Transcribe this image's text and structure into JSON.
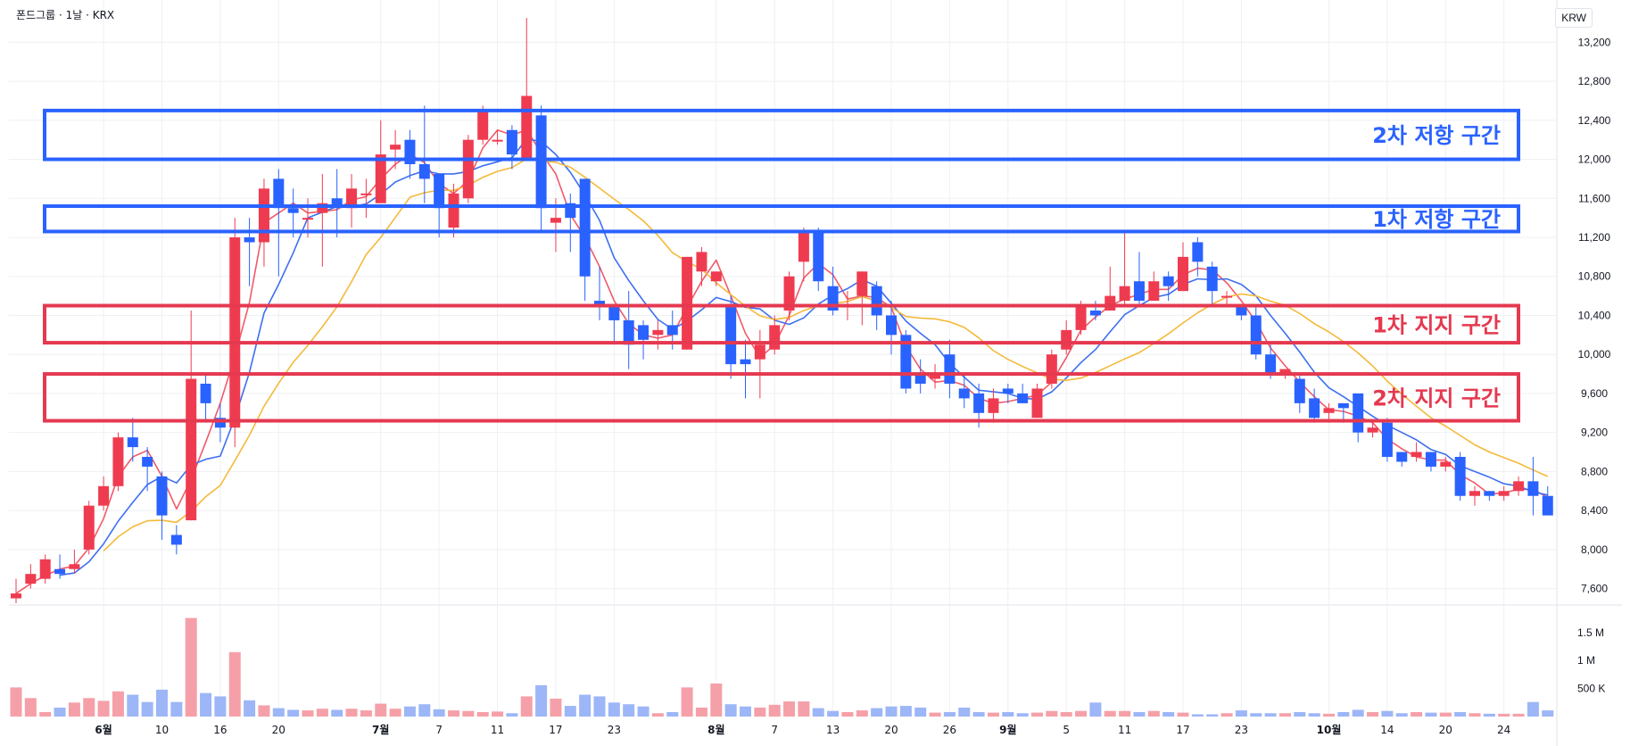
{
  "header": {
    "title": "폰드그룹 · 1날 · KRX",
    "currency": "KRW"
  },
  "colors": {
    "up": "#ef3b50",
    "down": "#2962ff",
    "ma5": "#f05a68",
    "ma10": "#3d6ff0",
    "ma20": "#f5b93a",
    "volUp": "#f5a0a8",
    "volDown": "#9db6f7",
    "grid": "#eef0f4"
  },
  "chart_data": {
    "type": "candlestick",
    "ylim": [
      7450,
      13450
    ],
    "y_ticks": [
      "13,200",
      "12,800",
      "12,400",
      "12,000",
      "11,600",
      "11,200",
      "10,800",
      "10,400",
      "10,000",
      "9,600",
      "9,200",
      "8,800",
      "8,400",
      "8,000",
      "7,600"
    ],
    "y_tick_values": [
      13200,
      12800,
      12400,
      12000,
      11600,
      11200,
      10800,
      10400,
      10000,
      9600,
      9200,
      8800,
      8400,
      8000,
      7600
    ],
    "vol_ticks": [
      "1.5 M",
      "1 M",
      "500 K"
    ],
    "vol_tick_values": [
      1500000,
      1000000,
      500000
    ],
    "vol_max": 1800000,
    "x_labels": [
      {
        "i": 6,
        "text": "6월",
        "bold": true
      },
      {
        "i": 10,
        "text": "10"
      },
      {
        "i": 14,
        "text": "16"
      },
      {
        "i": 18,
        "text": "20"
      },
      {
        "i": 25,
        "text": "7월",
        "bold": true
      },
      {
        "i": 29,
        "text": "7"
      },
      {
        "i": 33,
        "text": "11"
      },
      {
        "i": 37,
        "text": "17"
      },
      {
        "i": 41,
        "text": "23"
      },
      {
        "i": 48,
        "text": "8월",
        "bold": true
      },
      {
        "i": 52,
        "text": "7"
      },
      {
        "i": 56,
        "text": "13"
      },
      {
        "i": 60,
        "text": "20"
      },
      {
        "i": 64,
        "text": "26"
      },
      {
        "i": 68,
        "text": "9월",
        "bold": true
      },
      {
        "i": 72,
        "text": "5"
      },
      {
        "i": 76,
        "text": "11"
      },
      {
        "i": 80,
        "text": "17"
      },
      {
        "i": 84,
        "text": "23"
      },
      {
        "i": 90,
        "text": "10월",
        "bold": true
      },
      {
        "i": 94,
        "text": "14"
      },
      {
        "i": 98,
        "text": "20"
      },
      {
        "i": 102,
        "text": "24"
      }
    ],
    "zones": [
      {
        "label": "2차 저항 구간",
        "top": 12500,
        "bottom": 12000,
        "color": "#2962ff"
      },
      {
        "label": "1차 저항 구간",
        "top": 11520,
        "bottom": 11260,
        "color": "#2962ff"
      },
      {
        "label": "1차 지지 구간",
        "top": 10500,
        "bottom": 10120,
        "color": "#e53950"
      },
      {
        "label": "2차 지지 구간",
        "top": 9800,
        "bottom": 9320,
        "color": "#e53950"
      }
    ],
    "candles": [
      [
        7500,
        7550,
        7450,
        7700
      ],
      [
        7650,
        7750,
        7600,
        7850
      ],
      [
        7700,
        7900,
        7650,
        7950
      ],
      [
        7800,
        7750,
        7700,
        7950
      ],
      [
        7800,
        7850,
        7750,
        8000
      ],
      [
        8000,
        8450,
        7950,
        8500
      ],
      [
        8450,
        8650,
        8400,
        8750
      ],
      [
        8650,
        9150,
        8600,
        9200
      ],
      [
        9150,
        9050,
        8900,
        9350
      ],
      [
        8950,
        8850,
        8600,
        9050
      ],
      [
        8750,
        8350,
        8100,
        8800
      ],
      [
        8150,
        8050,
        7950,
        8250
      ],
      [
        8300,
        9750,
        8300,
        10450
      ],
      [
        9700,
        9500,
        9300,
        9800
      ],
      [
        9350,
        9250,
        9100,
        9500
      ],
      [
        9250,
        11200,
        9050,
        11400
      ],
      [
        11200,
        11150,
        10700,
        11400
      ],
      [
        11150,
        11700,
        10900,
        11800
      ],
      [
        11800,
        11500,
        10800,
        11900
      ],
      [
        11500,
        11450,
        11200,
        11700
      ],
      [
        11400,
        11400,
        11200,
        11600
      ],
      [
        11450,
        11550,
        10900,
        11850
      ],
      [
        11600,
        11500,
        11200,
        11900
      ],
      [
        11500,
        11700,
        11300,
        11850
      ],
      [
        11650,
        11650,
        11400,
        11800
      ],
      [
        11550,
        12050,
        11550,
        12400
      ],
      [
        12100,
        12150,
        11900,
        12300
      ],
      [
        12200,
        11950,
        11800,
        12300
      ],
      [
        11950,
        11800,
        11550,
        12550
      ],
      [
        11850,
        11500,
        11200,
        11850
      ],
      [
        11300,
        11650,
        11200,
        11750
      ],
      [
        11600,
        12200,
        11550,
        12250
      ],
      [
        12200,
        12500,
        12150,
        12550
      ],
      [
        12200,
        12200,
        12150,
        12300
      ],
      [
        12300,
        12050,
        11900,
        12350
      ],
      [
        12000,
        12650,
        12000,
        13450
      ],
      [
        12450,
        11500,
        11250,
        12550
      ],
      [
        11350,
        11400,
        11050,
        11600
      ],
      [
        11550,
        11400,
        11050,
        11650
      ],
      [
        11800,
        10800,
        10550,
        11800
      ],
      [
        10550,
        10500,
        10350,
        10900
      ],
      [
        10500,
        10350,
        10100,
        10500
      ],
      [
        10350,
        10100,
        9850,
        10650
      ],
      [
        10300,
        10150,
        9950,
        10350
      ],
      [
        10200,
        10250,
        10050,
        10350
      ],
      [
        10300,
        10200,
        10050,
        10450
      ],
      [
        10050,
        11000,
        10050,
        11000
      ],
      [
        10850,
        11050,
        10700,
        11100
      ],
      [
        10750,
        10850,
        10700,
        10850
      ],
      [
        10500,
        9900,
        9750,
        10600
      ],
      [
        9950,
        9900,
        9550,
        10150
      ],
      [
        9950,
        10100,
        9550,
        10250
      ],
      [
        10050,
        10300,
        10000,
        10400
      ],
      [
        10450,
        10800,
        10350,
        10850
      ],
      [
        10950,
        11250,
        10750,
        11300
      ],
      [
        11250,
        10750,
        10650,
        11300
      ],
      [
        10700,
        10450,
        10400,
        10900
      ],
      [
        10500,
        10500,
        10350,
        10650
      ],
      [
        10600,
        10850,
        10300,
        10850
      ],
      [
        10700,
        10400,
        10250,
        10750
      ],
      [
        10400,
        10200,
        10000,
        10550
      ],
      [
        10200,
        9650,
        9600,
        10250
      ],
      [
        9800,
        9700,
        9600,
        9950
      ],
      [
        9750,
        9800,
        9650,
        9900
      ],
      [
        10000,
        9700,
        9550,
        10150
      ],
      [
        9650,
        9550,
        9450,
        9800
      ],
      [
        9600,
        9400,
        9250,
        9700
      ],
      [
        9400,
        9550,
        9300,
        9650
      ],
      [
        9650,
        9600,
        9500,
        9700
      ],
      [
        9600,
        9500,
        9500,
        9700
      ],
      [
        9350,
        9650,
        9350,
        9700
      ],
      [
        9700,
        10000,
        9650,
        10050
      ],
      [
        10050,
        10250,
        10000,
        10350
      ],
      [
        10250,
        10500,
        10200,
        10550
      ],
      [
        10450,
        10400,
        10350,
        10550
      ],
      [
        10450,
        10600,
        10450,
        10900
      ],
      [
        10550,
        10700,
        10500,
        11250
      ],
      [
        10750,
        10550,
        10500,
        11050
      ],
      [
        10550,
        10750,
        10550,
        10850
      ],
      [
        10800,
        10700,
        10550,
        10850
      ],
      [
        10650,
        11000,
        10650,
        11150
      ],
      [
        11150,
        10950,
        10800,
        11200
      ],
      [
        10900,
        10650,
        10500,
        10950
      ],
      [
        10600,
        10600,
        10500,
        10650
      ],
      [
        10500,
        10400,
        10350,
        10500
      ],
      [
        10400,
        10000,
        9950,
        10500
      ],
      [
        10000,
        9800,
        9750,
        10100
      ],
      [
        9800,
        9850,
        9750,
        9850
      ],
      [
        9750,
        9500,
        9400,
        9800
      ],
      [
        9550,
        9350,
        9300,
        9650
      ],
      [
        9400,
        9450,
        9300,
        9500
      ],
      [
        9500,
        9450,
        9300,
        9500
      ],
      [
        9600,
        9200,
        9100,
        9600
      ],
      [
        9200,
        9250,
        9150,
        9300
      ],
      [
        9300,
        8950,
        8900,
        9350
      ],
      [
        9000,
        8900,
        8850,
        9000
      ],
      [
        8950,
        9000,
        8900,
        9100
      ],
      [
        9000,
        8850,
        8800,
        9000
      ],
      [
        8850,
        8900,
        8800,
        8950
      ],
      [
        8950,
        8550,
        8500,
        9000
      ],
      [
        8550,
        8600,
        8450,
        8650
      ],
      [
        8600,
        8550,
        8500,
        8600
      ],
      [
        8550,
        8600,
        8500,
        8650
      ],
      [
        8600,
        8700,
        8550,
        8750
      ],
      [
        8700,
        8550,
        8350,
        8950
      ],
      [
        8550,
        8350,
        8350,
        8650
      ]
    ],
    "volume": [
      520000,
      330000,
      80000,
      160000,
      250000,
      330000,
      280000,
      450000,
      390000,
      260000,
      480000,
      260000,
      1760000,
      420000,
      360000,
      1150000,
      290000,
      200000,
      150000,
      120000,
      110000,
      140000,
      120000,
      140000,
      110000,
      230000,
      140000,
      180000,
      220000,
      130000,
      110000,
      100000,
      80000,
      90000,
      60000,
      360000,
      560000,
      320000,
      190000,
      390000,
      360000,
      250000,
      220000,
      180000,
      60000,
      80000,
      520000,
      160000,
      590000,
      220000,
      180000,
      160000,
      210000,
      270000,
      270000,
      150000,
      100000,
      80000,
      110000,
      150000,
      180000,
      190000,
      160000,
      70000,
      80000,
      160000,
      80000,
      70000,
      80000,
      60000,
      70000,
      100000,
      80000,
      100000,
      250000,
      100000,
      100000,
      80000,
      100000,
      80000,
      70000,
      40000,
      40000,
      60000,
      110000,
      60000,
      60000,
      60000,
      80000,
      60000,
      50000,
      80000,
      120000,
      80000,
      100000,
      60000,
      80000,
      70000,
      70000,
      80000,
      60000,
      50000,
      50000,
      50000,
      260000,
      110000
    ],
    "ma5_start": 0,
    "ma10_start": 3,
    "ma20_start": 6
  }
}
